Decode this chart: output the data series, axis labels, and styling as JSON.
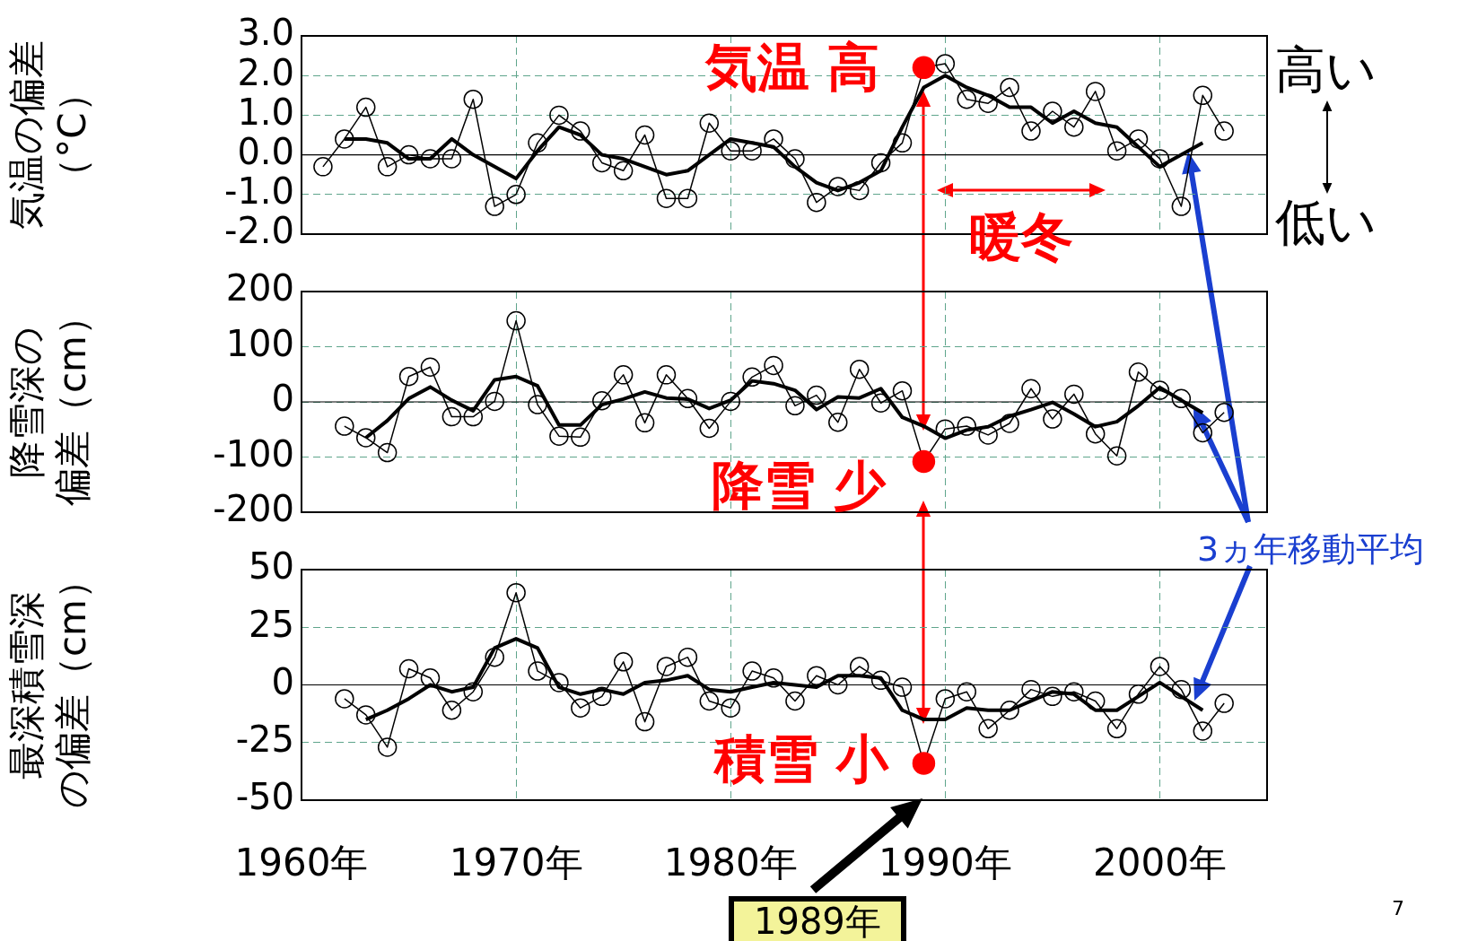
{
  "chart_data": [
    {
      "type": "line",
      "ylabel": "気温の偏差（°C）",
      "xlim": [
        1960,
        2005
      ],
      "xticks": [
        {
          "value": 1960,
          "label": null
        },
        {
          "value": 1970,
          "label": null
        },
        {
          "value": 1980,
          "label": null
        },
        {
          "value": 1990,
          "label": null
        },
        {
          "value": 2000,
          "label": null
        }
      ],
      "ylim": [
        -2,
        3
      ],
      "yticks": [
        {
          "value": 3,
          "label": "3.0"
        },
        {
          "value": 2,
          "label": "2.0"
        },
        {
          "value": 1,
          "label": "1.0"
        },
        {
          "value": 0,
          "label": "0.0"
        },
        {
          "value": -1,
          "label": "-1.0"
        },
        {
          "value": -2,
          "label": "-2.0"
        }
      ],
      "tick_labels": "y",
      "grid": true,
      "legend": false,
      "marker": "circle",
      "ref_lines": [
        {
          "axis": "y",
          "value": 0,
          "color": "#000000"
        }
      ],
      "annotations": [
        "気温 高",
        "暖冬",
        "高い",
        "低い"
      ],
      "series": [
        {
          "color": "#000000",
          "colors": [
            "#000000",
            "#000000",
            "#000000",
            "#000000",
            "#000000",
            "#000000",
            "#000000",
            "#000000",
            "#000000",
            "#000000",
            "#000000",
            "#000000",
            "#000000",
            "#000000",
            "#000000",
            "#000000",
            "#000000",
            "#000000",
            "#000000",
            "#000000",
            "#000000",
            "#000000",
            "#000000",
            "#000000",
            "#000000",
            "#000000",
            "#000000",
            "#000000",
            "#ff0000",
            "#000000",
            "#000000",
            "#000000",
            "#000000",
            "#000000",
            "#000000",
            "#000000",
            "#000000",
            "#000000",
            "#000000",
            "#000000",
            "#000000",
            "#000000",
            "#000000"
          ],
          "x": [
            1961,
            1962,
            1963,
            1964,
            1965,
            1966,
            1967,
            1968,
            1969,
            1970,
            1971,
            1972,
            1973,
            1974,
            1975,
            1976,
            1977,
            1978,
            1979,
            1980,
            1981,
            1982,
            1983,
            1984,
            1985,
            1986,
            1987,
            1988,
            1989,
            1990,
            1991,
            1992,
            1993,
            1994,
            1995,
            1996,
            1997,
            1998,
            1999,
            2000,
            2001,
            2002,
            2003
          ],
          "values": [
            -0.3,
            0.4,
            1.2,
            -0.3,
            0.0,
            -0.1,
            -0.1,
            1.4,
            -1.3,
            -1.0,
            0.3,
            1.0,
            0.6,
            -0.2,
            -0.4,
            0.5,
            -1.1,
            -1.1,
            0.8,
            0.1,
            0.1,
            0.4,
            -0.1,
            -1.2,
            -0.8,
            -0.9,
            -0.2,
            0.3,
            2.2,
            2.3,
            1.4,
            1.3,
            1.7,
            0.6,
            1.1,
            0.7,
            1.6,
            0.1,
            0.4,
            -0.1,
            -1.3,
            1.5,
            0.6
          ]
        },
        {
          "color": "#000000",
          "marker": "none",
          "x": [
            1962,
            1963,
            1964,
            1965,
            1966,
            1967,
            1968,
            1969,
            1970,
            1971,
            1972,
            1973,
            1974,
            1975,
            1976,
            1977,
            1978,
            1979,
            1980,
            1981,
            1982,
            1983,
            1984,
            1985,
            1986,
            1987,
            1988,
            1989,
            1990,
            1991,
            1992,
            1993,
            1994,
            1995,
            1996,
            1997,
            1998,
            1999,
            2000,
            2001,
            2002
          ],
          "values": [
            0.4,
            0.4,
            0.3,
            -0.1,
            -0.1,
            0.4,
            0.0,
            -0.3,
            -0.6,
            0.1,
            0.7,
            0.5,
            0.0,
            -0.1,
            -0.3,
            -0.5,
            -0.4,
            0.0,
            0.4,
            0.3,
            0.2,
            -0.3,
            -0.7,
            -0.9,
            -0.7,
            -0.4,
            0.7,
            1.7,
            2.0,
            1.7,
            1.5,
            1.2,
            1.2,
            0.8,
            1.1,
            0.8,
            0.7,
            0.2,
            -0.3,
            0.0,
            0.3
          ]
        }
      ]
    },
    {
      "type": "line",
      "ylabel": "降雪深の偏差（cm）",
      "xlim": [
        1960,
        2005
      ],
      "xticks": [
        {
          "value": 1960,
          "label": null
        },
        {
          "value": 1970,
          "label": null
        },
        {
          "value": 1980,
          "label": null
        },
        {
          "value": 1990,
          "label": null
        },
        {
          "value": 2000,
          "label": null
        }
      ],
      "ylim": [
        -200,
        200
      ],
      "yticks": [
        200,
        100,
        0,
        -100,
        -200
      ],
      "tick_labels": "y",
      "grid": true,
      "legend": false,
      "marker": "circle",
      "ref_lines": [
        {
          "axis": "y",
          "value": 0,
          "color": "#000000"
        }
      ],
      "annotations": [
        "降雪 少",
        "3ヵ年移動平均"
      ],
      "series": [
        {
          "color": "#000000",
          "colors": [
            "#000000",
            "#000000",
            "#000000",
            "#000000",
            "#000000",
            "#000000",
            "#000000",
            "#000000",
            "#000000",
            "#000000",
            "#000000",
            "#000000",
            "#000000",
            "#000000",
            "#000000",
            "#000000",
            "#000000",
            "#000000",
            "#000000",
            "#000000",
            "#000000",
            "#000000",
            "#000000",
            "#000000",
            "#000000",
            "#000000",
            "#000000",
            "#ff0000",
            "#000000",
            "#000000",
            "#000000",
            "#000000",
            "#000000",
            "#000000",
            "#000000",
            "#000000",
            "#000000",
            "#000000",
            "#000000",
            "#000000",
            "#000000",
            "#000000"
          ],
          "x": [
            1962,
            1963,
            1964,
            1965,
            1966,
            1967,
            1968,
            1969,
            1970,
            1971,
            1972,
            1973,
            1974,
            1975,
            1976,
            1977,
            1978,
            1979,
            1980,
            1981,
            1982,
            1983,
            1984,
            1985,
            1986,
            1987,
            1988,
            1989,
            1990,
            1991,
            1992,
            1993,
            1994,
            1995,
            1996,
            1997,
            1998,
            1999,
            2000,
            2001,
            2002,
            2003
          ],
          "values": [
            -44,
            -65,
            -92,
            46,
            63,
            -27,
            -27,
            1,
            147,
            -5,
            -62,
            -64,
            2,
            49,
            -38,
            49,
            6,
            -48,
            1,
            45,
            66,
            -7,
            12,
            -37,
            59,
            -2,
            20,
            -108,
            -49,
            -44,
            -60,
            -39,
            24,
            -31,
            14,
            -58,
            -98,
            54,
            21,
            6,
            -56,
            -19
          ]
        },
        {
          "color": "#000000",
          "marker": "none",
          "x": [
            1963,
            1964,
            1965,
            1966,
            1967,
            1968,
            1969,
            1970,
            1971,
            1972,
            1973,
            1974,
            1975,
            1976,
            1977,
            1978,
            1979,
            1980,
            1981,
            1982,
            1983,
            1984,
            1985,
            1986,
            1987,
            1988,
            1989,
            1990,
            1991,
            1992,
            1993,
            1994,
            1995,
            1996,
            1997,
            1998,
            1999,
            2000,
            2001,
            2002
          ],
          "values": [
            -65,
            -34,
            6,
            27,
            3,
            -16,
            40,
            46,
            29,
            -42,
            -42,
            -5,
            5,
            18,
            7,
            5,
            -12,
            3,
            38,
            33,
            21,
            -14,
            9,
            7,
            24,
            -28,
            -44,
            -66,
            -51,
            -45,
            -26,
            -14,
            -1,
            -22,
            -45,
            -36,
            -7,
            26,
            3,
            -20
          ]
        }
      ]
    },
    {
      "type": "line",
      "ylabel": "最深積雪深の偏差（cm）",
      "xlim": [
        1960,
        2005
      ],
      "xticks": [
        {
          "value": 1960,
          "label": "1960年"
        },
        {
          "value": 1970,
          "label": "1970年"
        },
        {
          "value": 1980,
          "label": "1980年"
        },
        {
          "value": 1990,
          "label": "1990年"
        },
        {
          "value": 2000,
          "label": "2000年"
        }
      ],
      "ylim": [
        -50,
        50
      ],
      "yticks": [
        50,
        25,
        0,
        -25,
        -50
      ],
      "grid": true,
      "legend": false,
      "marker": "circle",
      "ref_lines": [
        {
          "axis": "y",
          "value": 0,
          "color": "#000000"
        }
      ],
      "annotations": [
        "積雪 小",
        "1989年",
        "7"
      ],
      "series": [
        {
          "color": "#000000",
          "colors": [
            "#000000",
            "#000000",
            "#000000",
            "#000000",
            "#000000",
            "#000000",
            "#000000",
            "#000000",
            "#000000",
            "#000000",
            "#000000",
            "#000000",
            "#000000",
            "#000000",
            "#000000",
            "#000000",
            "#000000",
            "#000000",
            "#000000",
            "#000000",
            "#000000",
            "#000000",
            "#000000",
            "#000000",
            "#000000",
            "#000000",
            "#000000",
            "#ff0000",
            "#000000",
            "#000000",
            "#000000",
            "#000000",
            "#000000",
            "#000000",
            "#000000",
            "#000000",
            "#000000",
            "#000000",
            "#000000",
            "#000000",
            "#000000",
            "#000000"
          ],
          "x": [
            1962,
            1963,
            1964,
            1965,
            1966,
            1967,
            1968,
            1969,
            1970,
            1971,
            1972,
            1973,
            1974,
            1975,
            1976,
            1977,
            1978,
            1979,
            1980,
            1981,
            1982,
            1983,
            1984,
            1985,
            1986,
            1987,
            1988,
            1989,
            1990,
            1991,
            1992,
            1993,
            1994,
            1995,
            1996,
            1997,
            1998,
            1999,
            2000,
            2001,
            2002,
            2003
          ],
          "values": [
            -6,
            -13,
            -27,
            7,
            3,
            -11,
            -3,
            12,
            40,
            6,
            1,
            -10,
            -5,
            10,
            -16,
            8,
            12,
            -7,
            -10,
            6,
            3,
            -7,
            4,
            0,
            8,
            2,
            -1,
            -34,
            -6,
            -3,
            -19,
            -11,
            -2,
            -5,
            -3,
            -7,
            -19,
            -4,
            8,
            -2,
            -20,
            -8
          ]
        },
        {
          "color": "#000000",
          "marker": "none",
          "x": [
            1963,
            1964,
            1965,
            1966,
            1967,
            1968,
            1969,
            1970,
            1971,
            1972,
            1973,
            1974,
            1975,
            1976,
            1977,
            1978,
            1979,
            1980,
            1981,
            1982,
            1983,
            1984,
            1985,
            1986,
            1987,
            1988,
            1989,
            1990,
            1991,
            1992,
            1993,
            1994,
            1995,
            1996,
            1997,
            1998,
            1999,
            2000,
            2001,
            2002
          ],
          "values": [
            -15,
            -11,
            -6,
            0,
            -3,
            -1,
            16,
            20,
            16,
            -1,
            -4,
            -2,
            -4,
            1,
            2,
            4,
            -2,
            -3,
            -1,
            1,
            0,
            -1,
            4,
            4,
            3,
            -11,
            -15,
            -15,
            -10,
            -11,
            -11,
            -7,
            -3,
            -4,
            -11,
            -11,
            -5,
            1,
            -5,
            -11
          ]
        }
      ]
    }
  ]
}
